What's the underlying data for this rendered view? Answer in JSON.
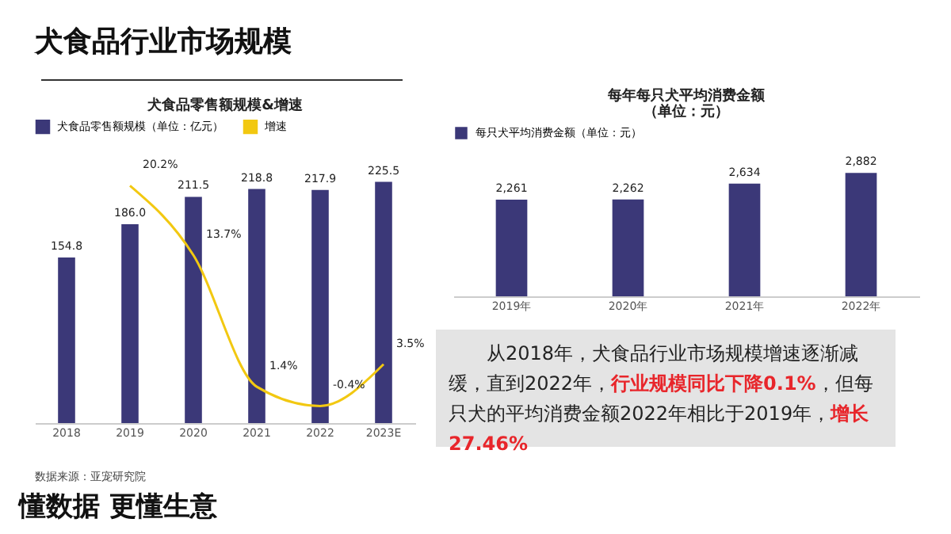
{
  "chart_data": [
    {
      "type": "bar",
      "title": "犬食品零售额规模&增速",
      "categories": [
        "2018",
        "2019",
        "2020",
        "2021",
        "2022",
        "2023E"
      ],
      "legend": "top",
      "annotations": [
        "数据来源：亚宠研究院"
      ],
      "series": [
        {
          "name": "犬食品零售额规模（单位：亿元）",
          "color": "#3b3878",
          "values": [
            154.8,
            186.0,
            211.5,
            218.8,
            217.9,
            225.5
          ],
          "value_labels": [
            "154.8",
            "186.0",
            "211.5",
            "218.8",
            "217.9",
            "225.5"
          ]
        },
        {
          "name": "增速",
          "type": "line",
          "axis": "y2",
          "color": "#f2c811",
          "values": [
            null,
            20.2,
            13.7,
            1.4,
            -0.4,
            3.5
          ],
          "value_labels": [
            null,
            "20.2%",
            "13.7%",
            "1.4%",
            "-0.4%",
            "3.5%"
          ]
        }
      ]
    },
    {
      "type": "bar",
      "title": "每年每只犬平均消费金额",
      "subtitle": "（单位：元）",
      "categories": [
        "2019年",
        "2020年",
        "2021年",
        "2022年"
      ],
      "legend": "top left",
      "series": [
        {
          "name": "每只犬平均消费金额（单位：元）",
          "color": "#3b3878",
          "values": [
            2261,
            2262,
            2634,
            2882
          ],
          "value_labels": [
            "2,261",
            "2,262",
            "2,634",
            "2,882"
          ]
        }
      ]
    },
    {
      "type": "other",
      "title": "犬食品行业市场规模",
      "subtitle": "懂数据 更懂生意",
      "annotations": [
        "从2018年，犬食品行业市场规模增速逐渐减缓，直到2022年，",
        "行业规模同比下降0.1%",
        "，但每只犬的平均消费金额2022年相比于2019年，",
        "增长27.46%"
      ]
    }
  ]
}
